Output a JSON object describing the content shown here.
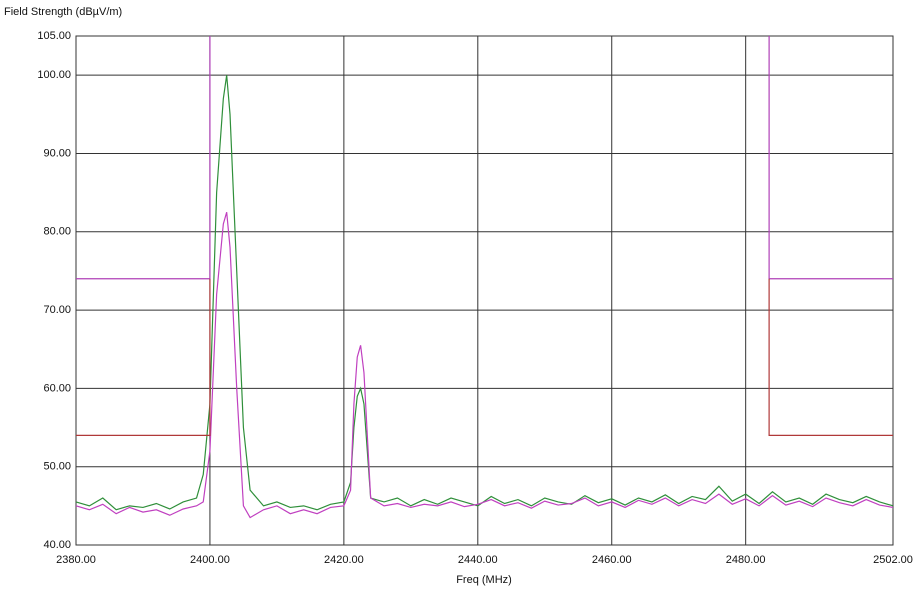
{
  "chart_data": {
    "type": "line",
    "title": "Field Strength (dBµV/m)",
    "x_label": "Freq (MHz)",
    "xlim": [
      2380,
      2502
    ],
    "ylim": [
      40,
      105
    ],
    "xticks": [
      {
        "value": 2380,
        "label": "2380.00"
      },
      {
        "value": 2400,
        "label": "2400.00"
      },
      {
        "value": 2420,
        "label": "2420.00"
      },
      {
        "value": 2440,
        "label": "2440.00"
      },
      {
        "value": 2460,
        "label": "2460.00"
      },
      {
        "value": 2480,
        "label": "2480.00"
      },
      {
        "value": 2502,
        "label": "2502.00"
      }
    ],
    "yticks": [
      {
        "value": 40,
        "label": "40.00"
      },
      {
        "value": 50,
        "label": "50.00"
      },
      {
        "value": 60,
        "label": "60.00"
      },
      {
        "value": 70,
        "label": "70.00"
      },
      {
        "value": 80,
        "label": "80.00"
      },
      {
        "value": 90,
        "label": "90.00"
      },
      {
        "value": 100,
        "label": "100.00"
      },
      {
        "value": 105,
        "label": "105.00"
      }
    ],
    "grid": true,
    "series": [
      {
        "color": "#2f8f3a",
        "x": [
          2380,
          2382,
          2384,
          2386,
          2388,
          2390,
          2392,
          2394,
          2396,
          2398,
          2399,
          2400,
          2401,
          2402,
          2402.5,
          2403,
          2404,
          2405,
          2406,
          2408,
          2410,
          2412,
          2414,
          2416,
          2418,
          2420,
          2421,
          2421.5,
          2422,
          2422.5,
          2423,
          2423.5,
          2424,
          2426,
          2428,
          2430,
          2432,
          2434,
          2436,
          2438,
          2440,
          2442,
          2444,
          2446,
          2448,
          2450,
          2452,
          2454,
          2456,
          2458,
          2460,
          2462,
          2464,
          2466,
          2468,
          2470,
          2472,
          2474,
          2476,
          2478,
          2480,
          2482,
          2484,
          2486,
          2488,
          2490,
          2492,
          2494,
          2496,
          2498,
          2500,
          2502
        ],
        "values": [
          45.5,
          45,
          46,
          44.5,
          45,
          44.8,
          45.3,
          44.6,
          45.5,
          46,
          49,
          58,
          85,
          97,
          100,
          95,
          75,
          55,
          47,
          45,
          45.5,
          44.8,
          45,
          44.5,
          45.2,
          45.5,
          48,
          55,
          59,
          60,
          58,
          52,
          46,
          45.5,
          46,
          45,
          45.8,
          45.2,
          46,
          45.5,
          45,
          46.2,
          45.3,
          45.8,
          45,
          46,
          45.5,
          45.2,
          46.3,
          45.4,
          45.9,
          45.1,
          46,
          45.5,
          46.4,
          45.3,
          46.2,
          45.8,
          47.5,
          45.6,
          46.5,
          45.3,
          46.8,
          45.5,
          46,
          45.2,
          46.5,
          45.8,
          45.4,
          46.2,
          45.5,
          45
        ]
      },
      {
        "color": "#c040c0",
        "x": [
          2380,
          2382,
          2384,
          2386,
          2388,
          2390,
          2392,
          2394,
          2396,
          2398,
          2399,
          2400,
          2401,
          2402,
          2402.5,
          2403,
          2404,
          2405,
          2406,
          2408,
          2410,
          2412,
          2414,
          2416,
          2418,
          2420,
          2421,
          2421.5,
          2422,
          2422.5,
          2423,
          2423.5,
          2424,
          2426,
          2428,
          2430,
          2432,
          2434,
          2436,
          2438,
          2440,
          2442,
          2444,
          2446,
          2448,
          2450,
          2452,
          2454,
          2456,
          2458,
          2460,
          2462,
          2464,
          2466,
          2468,
          2470,
          2472,
          2474,
          2476,
          2478,
          2480,
          2482,
          2484,
          2486,
          2488,
          2490,
          2492,
          2494,
          2496,
          2498,
          2500,
          2502
        ],
        "values": [
          45,
          44.5,
          45.2,
          44,
          44.8,
          44.2,
          44.5,
          43.8,
          44.6,
          45,
          45.5,
          52,
          72,
          81,
          82.5,
          78,
          60,
          45,
          43.5,
          44.5,
          45,
          44,
          44.5,
          44,
          44.8,
          45,
          47,
          58,
          64,
          65.5,
          62,
          54,
          46,
          45,
          45.3,
          44.8,
          45.2,
          45,
          45.5,
          44.9,
          45.2,
          45.8,
          45,
          45.4,
          44.7,
          45.6,
          45.1,
          45.3,
          46,
          45,
          45.5,
          44.8,
          45.7,
          45.2,
          46,
          45,
          45.8,
          45.3,
          46.5,
          45.2,
          45.9,
          45,
          46.3,
          45.1,
          45.6,
          44.9,
          46,
          45.4,
          45,
          45.8,
          45.1,
          44.8
        ]
      },
      {
        "color": "#b040b8",
        "x": [
          2380,
          2400,
          2400
        ],
        "values": [
          74,
          74,
          105
        ]
      },
      {
        "color": "#b040b8",
        "x": [
          2483.5,
          2483.5,
          2502
        ],
        "values": [
          105,
          74,
          74
        ]
      },
      {
        "color": "#b03838",
        "x": [
          2380,
          2400,
          2400
        ],
        "values": [
          54,
          54,
          74
        ]
      },
      {
        "color": "#b03838",
        "x": [
          2483.5,
          2483.5,
          2502
        ],
        "values": [
          74,
          54,
          54
        ]
      }
    ]
  }
}
